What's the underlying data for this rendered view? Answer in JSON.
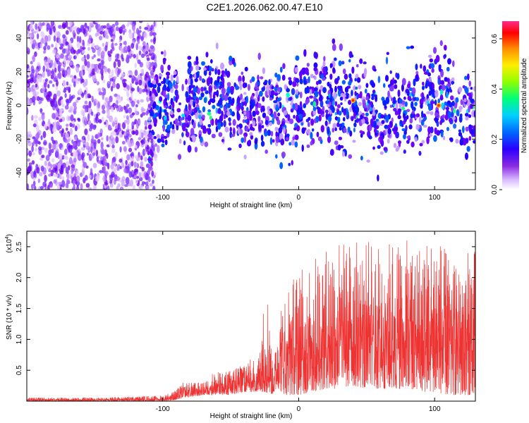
{
  "title": "C2E1.2026.062.00.47.E10",
  "chart_data": [
    {
      "type": "heatmap",
      "xlabel": "Height of straight line (km)",
      "ylabel": "Frequency (Hz)",
      "xlim": [
        -200,
        130
      ],
      "ylim": [
        -50,
        50
      ],
      "xticks": [
        -100,
        0,
        100
      ],
      "yticks": [
        -40,
        -20,
        0,
        20,
        40
      ],
      "colorbar": {
        "label": "Normalized spectral amplitude",
        "range": [
          0.0,
          0.67
        ],
        "ticks": [
          0.0,
          0.2,
          0.4,
          0.6
        ],
        "colors": [
          "#e6c8ff",
          "#9a4bff",
          "#6a00ff",
          "#2200ff",
          "#0050ff",
          "#00c8ff",
          "#00ff80",
          "#80ff00",
          "#ffff00",
          "#ff9900",
          "#ff0000",
          "#ff0080"
        ]
      },
      "regions": [
        {
          "name": "wideband noise",
          "x_range": [
            -200,
            -105
          ],
          "y_range": [
            -50,
            50
          ],
          "level": 0.05
        },
        {
          "name": "signal band",
          "x_range": [
            -110,
            130
          ],
          "y_range": [
            -12,
            12
          ],
          "level": 0.12
        },
        {
          "name": "peak",
          "x": 40,
          "y": 3,
          "level": 0.67
        },
        {
          "name": "peak",
          "x": 103,
          "y": 0,
          "level": 0.6
        }
      ]
    },
    {
      "type": "line",
      "xlabel": "Height of straight line (km)",
      "ylabel": "SNR (10 * v/v)",
      "y_multiplier_label": "(x10",
      "y_multiplier_exp": "4",
      "xlim": [
        -200,
        130
      ],
      "ylim": [
        0,
        2.75
      ],
      "xticks": [
        -100,
        0,
        100
      ],
      "yticks": [
        0.5,
        1.0,
        1.5,
        2.0,
        2.5
      ],
      "ytick_labels": [
        "0.5",
        "1.0",
        "1.5",
        "2.0",
        "2.5"
      ],
      "color": "#ee3333",
      "series": [
        {
          "name": "SNR",
          "x": [
            -200,
            -150,
            -100,
            -90,
            -85,
            -70,
            -65,
            -50,
            -40,
            -30,
            -25,
            -21,
            -20,
            -18,
            -15,
            -10,
            0,
            10,
            20,
            25,
            30,
            40,
            50,
            60,
            70,
            80,
            90,
            100,
            110,
            120,
            130
          ],
          "y_max": [
            0.06,
            0.06,
            0.09,
            0.18,
            0.3,
            0.3,
            0.45,
            0.5,
            0.7,
            0.65,
            1.7,
            1.7,
            0.65,
            0.7,
            1.5,
            1.9,
            2.1,
            2.3,
            2.5,
            2.6,
            2.6,
            2.6,
            2.6,
            2.55,
            2.6,
            2.6,
            2.55,
            2.75,
            2.4,
            2.4,
            2.45
          ],
          "y_min": [
            0.0,
            0.0,
            0.0,
            0.02,
            0.05,
            0.1,
            0.1,
            0.1,
            0.15,
            0.15,
            0.15,
            0.1,
            0.1,
            0.15,
            0.2,
            0.1,
            0.1,
            0.15,
            0.2,
            0.2,
            0.2,
            0.25,
            0.2,
            0.2,
            0.2,
            0.2,
            0.15,
            0.15,
            0.1,
            0.1,
            0.1
          ]
        }
      ]
    }
  ]
}
